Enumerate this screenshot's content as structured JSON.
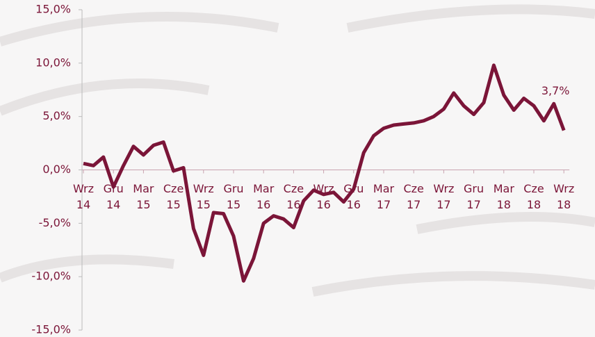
{
  "chart_data": {
    "type": "line",
    "categories": [
      "Wrz\n14",
      null,
      null,
      "Gru\n14",
      null,
      null,
      "Mar\n15",
      null,
      null,
      "Cze\n15",
      null,
      null,
      "Wrz\n15",
      null,
      null,
      "Gru\n15",
      null,
      null,
      "Mar\n16",
      null,
      null,
      "Cze\n16",
      null,
      null,
      "Wrz\n16",
      null,
      null,
      "Gru\n16",
      null,
      null,
      "Mar\n17",
      null,
      null,
      "Cze\n17",
      null,
      null,
      "Wrz\n17",
      null,
      null,
      "Gru\n17",
      null,
      null,
      "Mar\n18",
      null,
      null,
      "Cze\n18",
      null,
      null,
      "Wrz\n18"
    ],
    "series": [
      {
        "color": "#7b1538",
        "values": [
          0.6,
          0.4,
          1.2,
          -1.6,
          0.4,
          2.2,
          1.4,
          2.3,
          2.6,
          -0.1,
          0.2,
          -5.5,
          -8.0,
          -4.0,
          -4.1,
          -6.2,
          -10.4,
          -8.3,
          -5.0,
          -4.3,
          -4.6,
          -5.4,
          -2.9,
          -1.9,
          -2.3,
          -2.1,
          -3.0,
          -1.8,
          1.6,
          3.2,
          3.9,
          4.2,
          4.3,
          4.4,
          4.6,
          5.0,
          5.7,
          7.2,
          6.0,
          5.2,
          6.3,
          9.8,
          7.0,
          5.6,
          6.7,
          6.0,
          4.6,
          6.2,
          3.7
        ],
        "value_labels": [
          null,
          null,
          null,
          null,
          null,
          null,
          null,
          null,
          null,
          null,
          null,
          null,
          null,
          null,
          null,
          null,
          null,
          null,
          null,
          null,
          null,
          null,
          null,
          null,
          null,
          null,
          null,
          null,
          null,
          null,
          null,
          null,
          null,
          null,
          null,
          null,
          null,
          null,
          null,
          null,
          null,
          null,
          null,
          null,
          null,
          null,
          null,
          null,
          "3,7%"
        ]
      }
    ],
    "ylim": [
      -15,
      15
    ],
    "yticks": [
      {
        "value": -15,
        "label": "-15,0%"
      },
      {
        "value": -10,
        "label": "-10,0%"
      },
      {
        "value": -5,
        "label": "-5,0%"
      },
      {
        "value": 0,
        "label": "0,0%"
      },
      {
        "value": 5,
        "label": "5,0%"
      },
      {
        "value": 10,
        "label": "10,0%"
      },
      {
        "value": 15,
        "label": "15,0%"
      }
    ]
  }
}
